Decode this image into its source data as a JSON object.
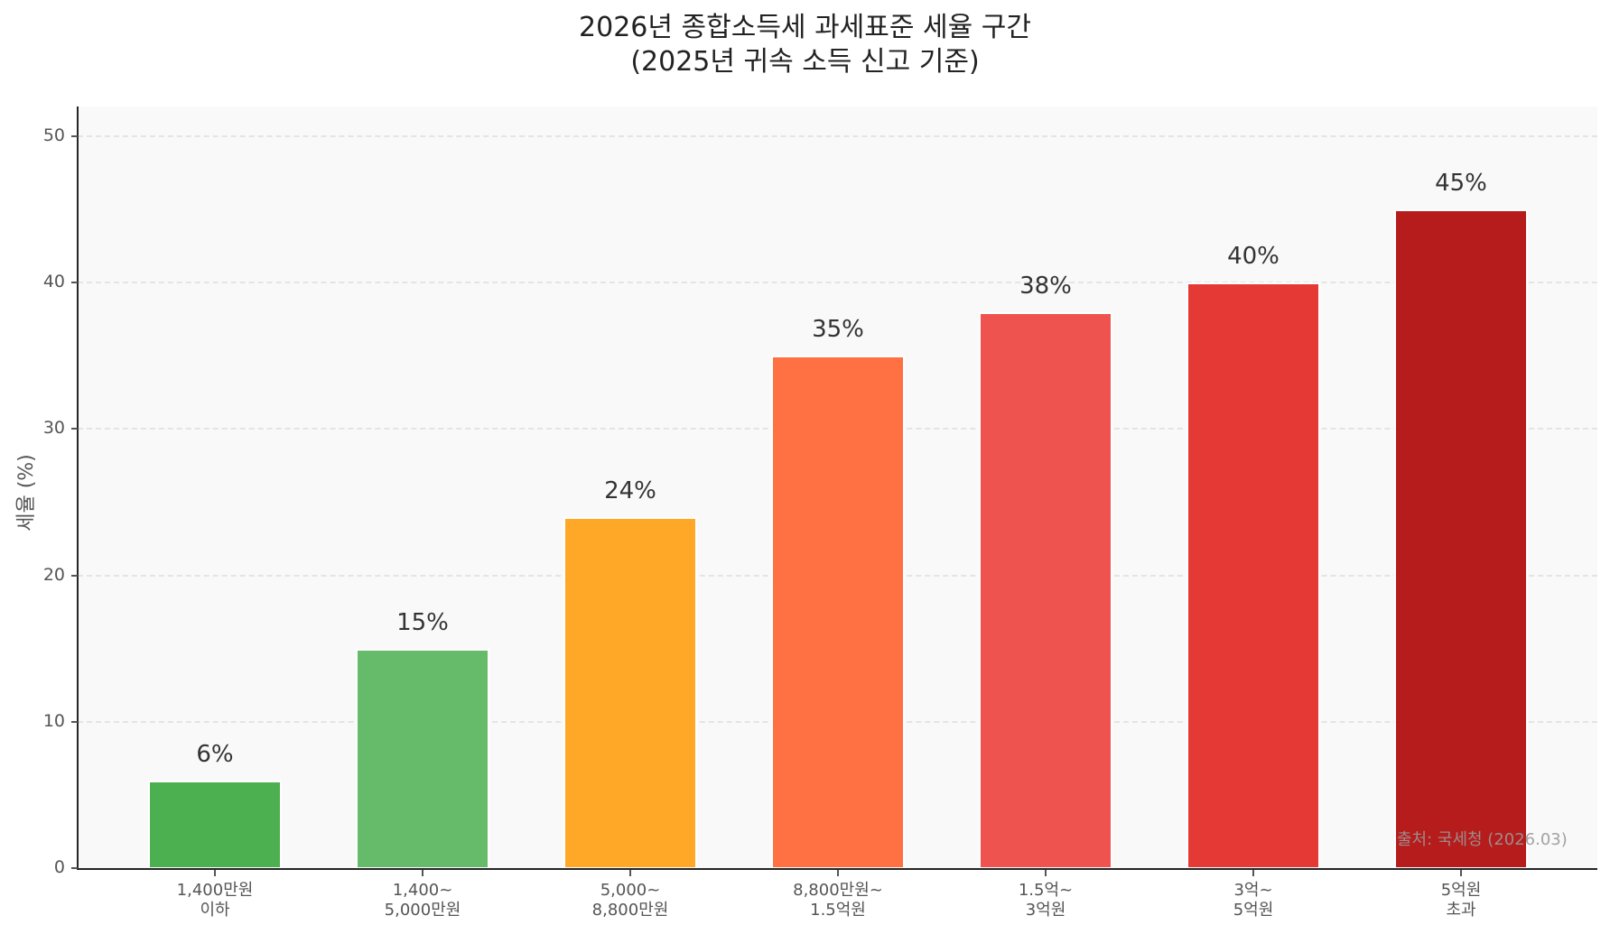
{
  "chart_data": {
    "type": "bar",
    "title": "2026년 종합소득세 과세표준 세율 구간",
    "subtitle": "(2025년 귀속 소득 신고 기준)",
    "xlabel": "",
    "ylabel": "세율 (%)",
    "ylim": [
      0,
      52
    ],
    "yticks": [
      0,
      10,
      20,
      30,
      40,
      50
    ],
    "grid": "horizontal dashed",
    "categories": [
      "1,400만원\n이하",
      "1,400~\n5,000만원",
      "5,000~\n8,800만원",
      "8,800만원~\n1.5억원",
      "1.5억~\n3억원",
      "3억~\n5억원",
      "5억원\n초과"
    ],
    "values": [
      6,
      15,
      24,
      35,
      38,
      40,
      45
    ],
    "data_labels": [
      "6%",
      "15%",
      "24%",
      "35%",
      "38%",
      "40%",
      "45%"
    ],
    "colors": [
      "#4caf50",
      "#66bb6a",
      "#ffa726",
      "#ff7043",
      "#ef5350",
      "#e53935",
      "#b71c1c"
    ],
    "annotation": "출처: 국세청 (2026.03)"
  },
  "title": {
    "line1": "2026년 종합소득세 과세표준 세율 구간",
    "line2": "(2025년 귀속 소득 신고 기준)"
  },
  "yaxis": {
    "title": "세율 (%)",
    "ticks": [
      "0",
      "10",
      "20",
      "30",
      "40",
      "50"
    ]
  },
  "xaxis": {
    "labels": [
      {
        "l1": "1,400만원",
        "l2": "이하"
      },
      {
        "l1": "1,400~",
        "l2": "5,000만원"
      },
      {
        "l1": "5,000~",
        "l2": "8,800만원"
      },
      {
        "l1": "8,800만원~",
        "l2": "1.5억원"
      },
      {
        "l1": "1.5억~",
        "l2": "3억원"
      },
      {
        "l1": "3억~",
        "l2": "5억원"
      },
      {
        "l1": "5억원",
        "l2": "초과"
      }
    ]
  },
  "bars": [
    {
      "label": "6%"
    },
    {
      "label": "15%"
    },
    {
      "label": "24%"
    },
    {
      "label": "35%"
    },
    {
      "label": "38%"
    },
    {
      "label": "40%"
    },
    {
      "label": "45%"
    }
  ],
  "source": "출처: 국세청 (2026.03)"
}
